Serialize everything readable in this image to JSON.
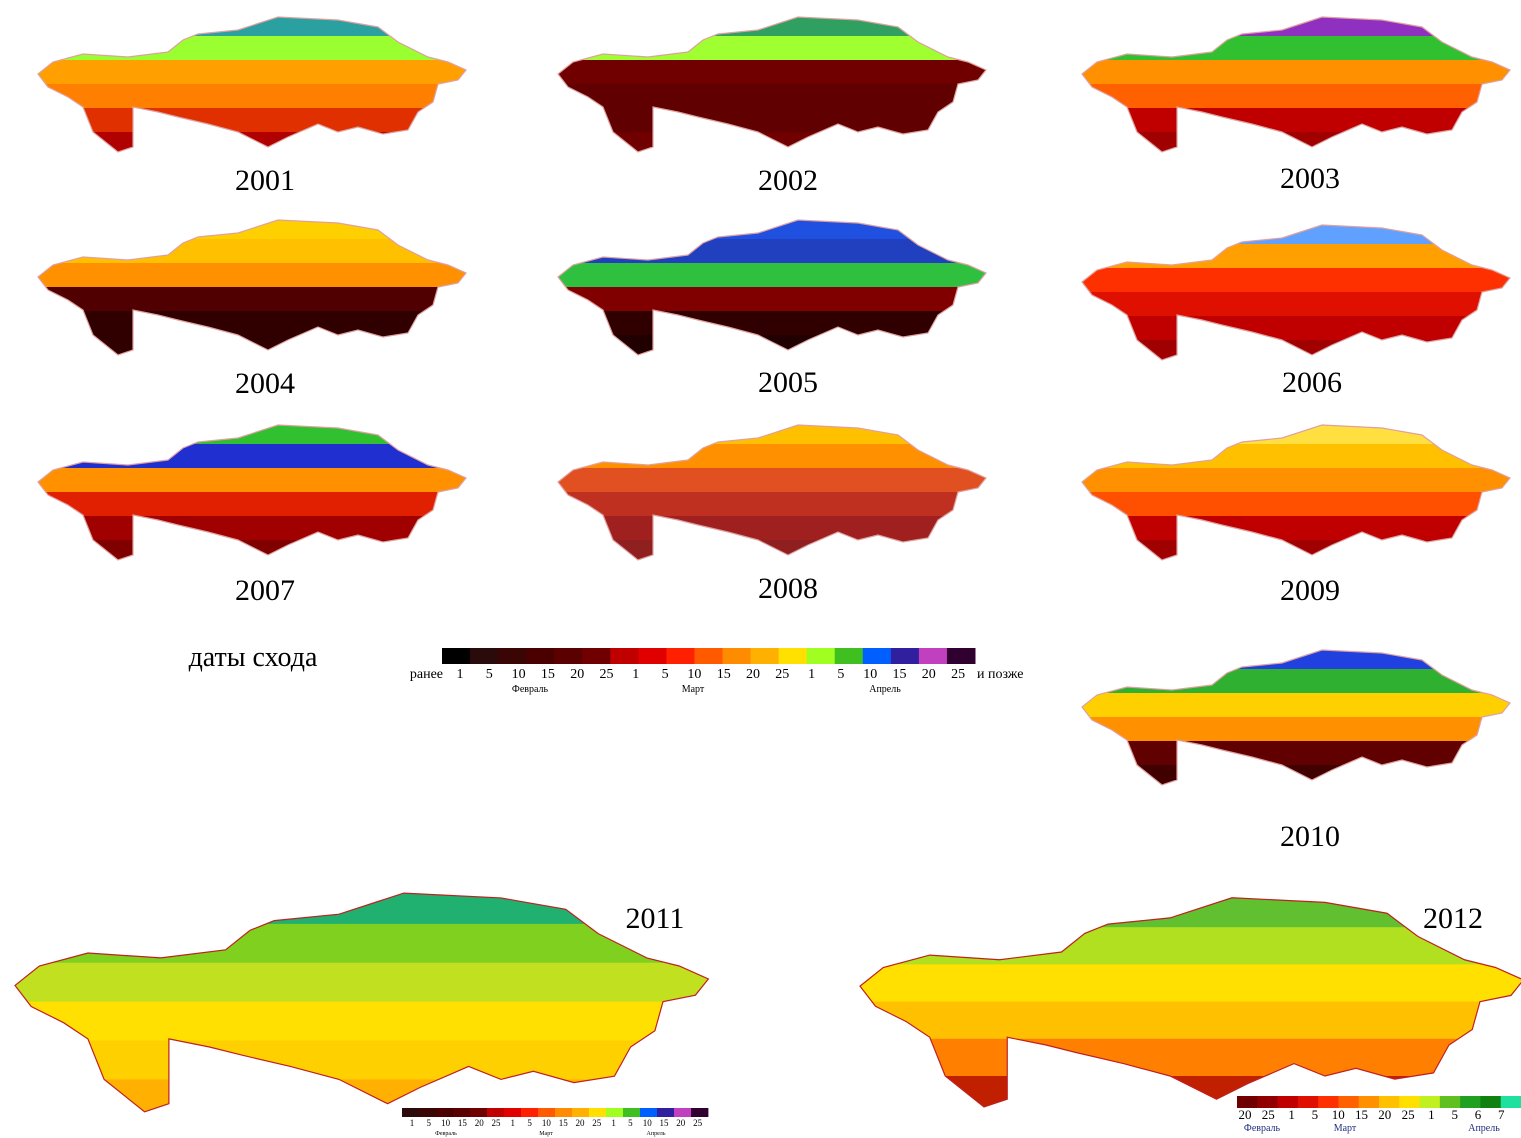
{
  "maps": [
    {
      "year": "2001"
    },
    {
      "year": "2002"
    },
    {
      "year": "2003"
    },
    {
      "year": "2004"
    },
    {
      "year": "2005"
    },
    {
      "year": "2006"
    },
    {
      "year": "2007"
    },
    {
      "year": "2008"
    },
    {
      "year": "2009"
    },
    {
      "year": "2010"
    },
    {
      "year": "2011"
    },
    {
      "year": "2012"
    }
  ],
  "legend": {
    "title": "даты схода",
    "before": "ранее",
    "after": "и позже",
    "ticks": [
      "1",
      "5",
      "10",
      "15",
      "20",
      "25",
      "1",
      "5",
      "10",
      "15",
      "20",
      "25",
      "1",
      "5",
      "10",
      "15",
      "20",
      "25"
    ],
    "months": [
      "Февраль",
      "Март",
      "Апрель"
    ]
  },
  "legend_2011": {
    "ticks": [
      "1",
      "5",
      "10",
      "15",
      "20",
      "25",
      "1",
      "5",
      "10",
      "15",
      "20",
      "25",
      "1",
      "5",
      "10",
      "15",
      "20",
      "25"
    ],
    "months": [
      "Февраль",
      "Март",
      "Апрель"
    ]
  },
  "legend_2012": {
    "ticks": [
      "20",
      "25",
      "1",
      "5",
      "10",
      "15",
      "20",
      "25",
      "1",
      "5",
      "6",
      "7"
    ],
    "months": [
      "Февраль",
      "Март",
      "Апрель"
    ]
  }
}
